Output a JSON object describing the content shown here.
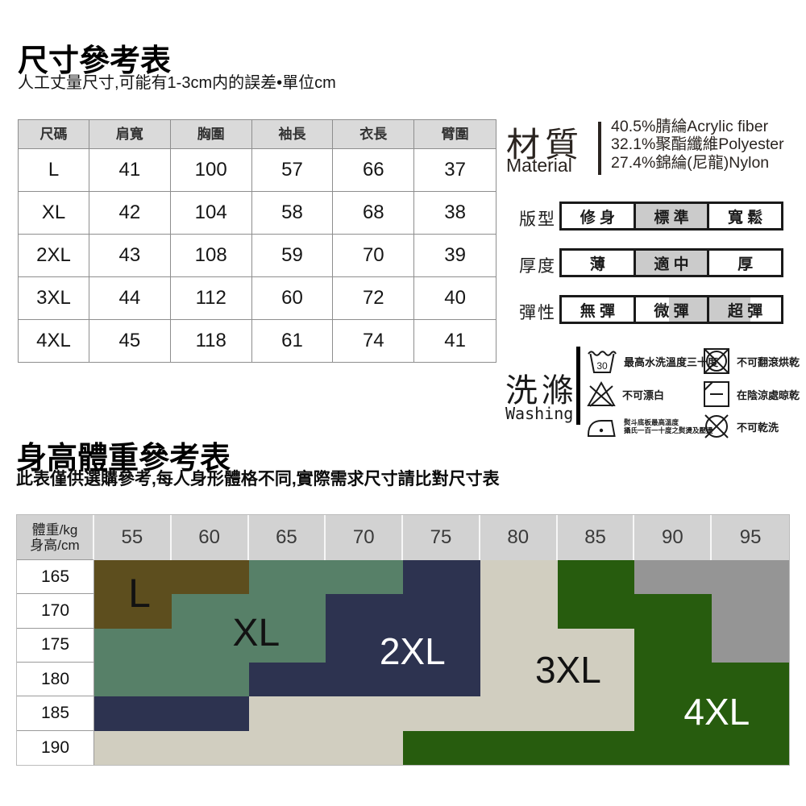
{
  "size_section": {
    "title": "尺寸參考表",
    "subtitle": "人工丈量尺寸,可能有1-3cm内的誤差•單位cm",
    "table": {
      "headers": [
        "尺碼",
        "肩寬",
        "胸圍",
        "袖長",
        "衣長",
        "臂圍"
      ],
      "rows": [
        [
          "L",
          "41",
          "100",
          "57",
          "66",
          "37"
        ],
        [
          "XL",
          "42",
          "104",
          "58",
          "68",
          "38"
        ],
        [
          "2XL",
          "43",
          "108",
          "59",
          "70",
          "39"
        ],
        [
          "3XL",
          "44",
          "112",
          "60",
          "72",
          "40"
        ],
        [
          "4XL",
          "45",
          "118",
          "61",
          "74",
          "41"
        ]
      ]
    }
  },
  "material": {
    "title_zh": "材質",
    "title_en": "Material",
    "lines": [
      "40.5%腈綸Acrylic fiber",
      "32.1%聚酯纖維Polyester",
      "27.4%錦綸(尼龍)Nylon"
    ]
  },
  "attributes": {
    "fit": {
      "label": "版型",
      "options": [
        "修 身",
        "標 準",
        "寬 鬆"
      ],
      "selected": "標 準"
    },
    "thickness": {
      "label": "厚度",
      "options": [
        "薄",
        "適 中",
        "厚"
      ],
      "selected": "適 中"
    },
    "elasticity": {
      "label": "彈性",
      "options": [
        "無 彈",
        "微 彈",
        "超 彈"
      ],
      "selected_range": [
        "微 彈",
        "超 彈"
      ]
    }
  },
  "washing": {
    "title_zh": "洗滌",
    "title_en": "Washing",
    "wash_temp": "30",
    "items": [
      {
        "icon": "wash-30-icon",
        "text": "最高水洗溫度三十度"
      },
      {
        "icon": "no-tumble-dry-icon",
        "text": "不可翻滾烘乾"
      },
      {
        "icon": "no-bleach-icon",
        "text": "不可漂白"
      },
      {
        "icon": "line-dry-shade-icon",
        "text": "在陰涼處晾乾"
      },
      {
        "icon": "iron-max-110-icon",
        "text_lines": [
          "熨斗底板最高溫度",
          "攝氏一百一十度之熨燙及壓燙"
        ]
      },
      {
        "icon": "no-dry-clean-icon",
        "text": "不可乾洗"
      }
    ]
  },
  "height_weight_section": {
    "title": "身高體重參考表",
    "subtitle": "此表僅供選購參考,每人身形體格不同,實際需求尺寸請比對尺寸表",
    "corner_top": "體重/kg",
    "corner_bottom": "身高/cm",
    "weights": [
      "55",
      "60",
      "65",
      "70",
      "75",
      "80",
      "85",
      "90",
      "95"
    ],
    "heights": [
      "165",
      "170",
      "175",
      "180",
      "185",
      "190"
    ],
    "grid": [
      [
        "L",
        "L",
        "XL",
        "XL",
        "2XL",
        "3XL",
        "4XL",
        "-",
        "-"
      ],
      [
        "L",
        "XL",
        "XL",
        "2XL",
        "2XL",
        "3XL",
        "4XL",
        "4XL",
        "-"
      ],
      [
        "XL",
        "XL",
        "XL",
        "2XL",
        "2XL",
        "3XL",
        "3XL",
        "4XL",
        "-"
      ],
      [
        "XL",
        "XL",
        "2XL",
        "2XL",
        "2XL",
        "3XL",
        "3XL",
        "4XL",
        "4XL"
      ],
      [
        "2XL",
        "2XL",
        "3XL",
        "3XL",
        "3XL",
        "3XL",
        "3XL",
        "4XL",
        "4XL"
      ],
      [
        "3XL",
        "3XL",
        "3XL",
        "3XL",
        "4XL",
        "4XL",
        "4XL",
        "4XL",
        "4XL"
      ]
    ],
    "colors": {
      "L": "#5d4e1e",
      "XL": "#578068",
      "2XL": "#2d3350",
      "3XL": "#d1cec0",
      "4XL": "#275c0e",
      "-": "#959595"
    },
    "region_labels": [
      "L",
      "XL",
      "2XL",
      "3XL",
      "4XL"
    ]
  },
  "chart_data": {
    "type": "heatmap",
    "title": "身高體重參考表",
    "xlabel": "體重/kg",
    "ylabel": "身高/cm",
    "x": [
      55,
      60,
      65,
      70,
      75,
      80,
      85,
      90,
      95
    ],
    "y": [
      165,
      170,
      175,
      180,
      185,
      190
    ],
    "cells": [
      [
        "L",
        "L",
        "XL",
        "XL",
        "2XL",
        "3XL",
        "4XL",
        null,
        null
      ],
      [
        "L",
        "XL",
        "XL",
        "2XL",
        "2XL",
        "3XL",
        "4XL",
        "4XL",
        null
      ],
      [
        "XL",
        "XL",
        "XL",
        "2XL",
        "2XL",
        "3XL",
        "3XL",
        "4XL",
        null
      ],
      [
        "XL",
        "XL",
        "2XL",
        "2XL",
        "2XL",
        "3XL",
        "3XL",
        "4XL",
        "4XL"
      ],
      [
        "2XL",
        "2XL",
        "3XL",
        "3XL",
        "3XL",
        "3XL",
        "3XL",
        "4XL",
        "4XL"
      ],
      [
        "3XL",
        "3XL",
        "3XL",
        "3XL",
        "4XL",
        "4XL",
        "4XL",
        "4XL",
        "4XL"
      ]
    ],
    "legend": {
      "L": "#5d4e1e",
      "XL": "#578068",
      "2XL": "#2d3350",
      "3XL": "#d1cec0",
      "4XL": "#275c0e",
      "none": "#959595"
    }
  }
}
